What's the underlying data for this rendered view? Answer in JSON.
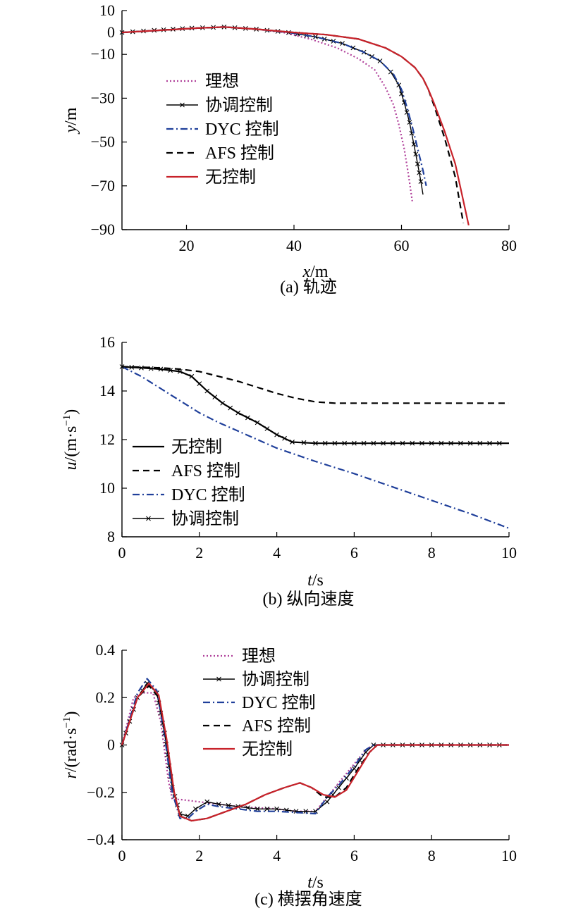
{
  "chart_data": [
    {
      "type": "line",
      "caption": "(a) 轨迹",
      "xlabel_var": "x",
      "xlabel_unit": "/m",
      "ylabel_var": "y",
      "ylabel_unit": "/m",
      "xlim": [
        8,
        80
      ],
      "ylim": [
        -90,
        10
      ],
      "xticks": [
        20,
        40,
        60,
        80
      ],
      "yticks": [
        10,
        0,
        -10,
        -30,
        -50,
        -70,
        -90
      ],
      "legend": "left",
      "series": [
        {
          "name": "理想",
          "color": "#b0409a",
          "style": "dotted",
          "x": [
            8,
            15,
            22,
            27,
            33,
            38,
            43,
            48,
            52,
            55,
            57,
            58.5,
            59.5,
            60.5,
            61.3,
            62
          ],
          "y": [
            0,
            1,
            2,
            2.5,
            1.5,
            0,
            -3,
            -7,
            -12,
            -17,
            -25,
            -33,
            -42,
            -53,
            -65,
            -77
          ]
        },
        {
          "name": "协调控制",
          "color": "#000000",
          "style": "solid-x",
          "x": [
            8,
            14,
            21,
            27,
            33,
            39,
            44,
            49,
            53,
            56,
            58,
            59.5,
            60.5,
            61.5,
            62.3,
            63,
            63.6,
            64
          ],
          "y": [
            0,
            1,
            2,
            2.5,
            1.5,
            0,
            -2,
            -5,
            -9,
            -13,
            -18,
            -24,
            -32,
            -41,
            -51,
            -60,
            -68,
            -74
          ]
        },
        {
          "name": "DYC 控制",
          "color": "#1f3f9a",
          "style": "dashdot",
          "x": [
            8,
            15,
            22,
            27,
            33,
            39,
            44,
            49,
            53,
            56,
            58.5,
            60,
            61,
            62,
            63,
            64,
            64.6
          ],
          "y": [
            0,
            1,
            2,
            2.5,
            1.5,
            0,
            -2,
            -5,
            -9,
            -13,
            -19,
            -26,
            -34,
            -43,
            -53,
            -63,
            -70
          ]
        },
        {
          "name": "AFS 控制",
          "color": "#000000",
          "style": "dashed",
          "x": [
            8,
            15,
            22,
            27,
            33,
            40,
            46,
            52,
            57,
            60,
            62.5,
            64,
            65,
            66,
            68,
            70,
            71.5
          ],
          "y": [
            0,
            1,
            2,
            2.5,
            1.5,
            0,
            -1,
            -3,
            -7,
            -11,
            -16,
            -21,
            -26,
            -33,
            -48,
            -66,
            -87
          ]
        },
        {
          "name": "无控制",
          "color": "#c8222a",
          "style": "solid",
          "x": [
            8,
            15,
            22,
            27,
            33,
            40,
            46,
            52,
            57,
            60,
            62.5,
            64,
            65,
            66,
            68,
            70,
            72.5
          ],
          "y": [
            0,
            1,
            2,
            2.5,
            1.5,
            0,
            -1,
            -3,
            -7,
            -11,
            -16,
            -21,
            -26,
            -32,
            -45,
            -60,
            -88
          ]
        }
      ]
    },
    {
      "type": "line",
      "caption": "(b) 纵向速度",
      "xlabel_var": "t",
      "xlabel_unit": "/s",
      "ylabel_var": "u",
      "ylabel_unit": "/(m·s",
      "ylabel_exp": "−1",
      "ylabel_close": ")",
      "xlim": [
        0,
        10
      ],
      "ylim": [
        8,
        16
      ],
      "xticks": [
        0,
        2,
        4,
        6,
        8,
        10
      ],
      "yticks": [
        8,
        10,
        12,
        14,
        16
      ],
      "legend": "bottom-left",
      "series": [
        {
          "name": "无控制",
          "color": "#000000",
          "style": "solid",
          "x": [
            0,
            0.5,
            1,
            1.5,
            1.8,
            2.2,
            2.6,
            3,
            3.5,
            4,
            4.4,
            5,
            6,
            7,
            8,
            9,
            10
          ],
          "y": [
            15,
            14.95,
            14.9,
            14.8,
            14.6,
            14.0,
            13.5,
            13.1,
            12.7,
            12.2,
            11.9,
            11.85,
            11.85,
            11.85,
            11.85,
            11.85,
            11.85
          ]
        },
        {
          "name": "AFS 控制",
          "color": "#000000",
          "style": "dashed",
          "x": [
            0,
            0.5,
            1,
            1.5,
            2,
            2.5,
            3,
            3.5,
            4,
            4.5,
            5,
            5.5,
            6,
            7,
            8,
            9,
            10
          ],
          "y": [
            15,
            14.98,
            14.95,
            14.9,
            14.8,
            14.6,
            14.4,
            14.15,
            13.9,
            13.7,
            13.55,
            13.5,
            13.5,
            13.5,
            13.5,
            13.5,
            13.5
          ]
        },
        {
          "name": "DYC 控制",
          "color": "#1f3f9a",
          "style": "dashdot",
          "x": [
            0,
            0.5,
            1,
            1.5,
            2,
            2.5,
            3,
            3.5,
            4,
            5,
            6,
            7,
            8,
            9,
            10
          ],
          "y": [
            15,
            14.6,
            14.1,
            13.6,
            13.1,
            12.7,
            12.35,
            12.0,
            11.65,
            11.1,
            10.6,
            10.05,
            9.5,
            8.95,
            8.35
          ]
        },
        {
          "name": "协调控制",
          "color": "#000000",
          "style": "solid-x",
          "x": [
            0,
            0.5,
            1,
            1.5,
            1.8,
            2.2,
            2.6,
            3,
            3.5,
            4,
            4.4,
            5,
            6,
            7,
            8,
            9,
            10
          ],
          "y": [
            15,
            14.95,
            14.9,
            14.8,
            14.6,
            14.0,
            13.5,
            13.1,
            12.7,
            12.2,
            11.9,
            11.85,
            11.85,
            11.85,
            11.85,
            11.85,
            11.85
          ]
        }
      ]
    },
    {
      "type": "line",
      "caption": "(c) 横摆角速度",
      "xlabel_var": "t",
      "xlabel_unit": "/s",
      "ylabel_var": "r",
      "ylabel_unit": "/(rad·s",
      "ylabel_exp": "−1",
      "ylabel_close": ")",
      "xlim": [
        0,
        10
      ],
      "ylim": [
        -0.4,
        0.4
      ],
      "xticks": [
        0,
        2,
        4,
        6,
        8,
        10
      ],
      "yticks": [
        0.4,
        0.2,
        0,
        -0.2,
        -0.4
      ],
      "legend": "top-center",
      "series": [
        {
          "name": "理想",
          "color": "#b0409a",
          "style": "dotted",
          "x": [
            0,
            0.15,
            0.3,
            0.5,
            0.8,
            1.0,
            1.2,
            1.3,
            1.5,
            2,
            3,
            4,
            4.5,
            5,
            5.3,
            5.6,
            6,
            6.3,
            6.5,
            7,
            8,
            9,
            10
          ],
          "y": [
            0,
            0.1,
            0.2,
            0.22,
            0.22,
            0.1,
            -0.15,
            -0.23,
            -0.23,
            -0.24,
            -0.26,
            -0.27,
            -0.28,
            -0.28,
            -0.22,
            -0.16,
            -0.08,
            -0.02,
            0,
            0,
            0,
            0,
            0
          ]
        },
        {
          "name": "协调控制",
          "color": "#000000",
          "style": "solid-x",
          "x": [
            0,
            0.2,
            0.4,
            0.65,
            0.9,
            1.1,
            1.3,
            1.5,
            1.7,
            1.9,
            2.2,
            2.5,
            3,
            3.5,
            4,
            4.5,
            5,
            5.3,
            5.6,
            6,
            6.3,
            6.5,
            7,
            8,
            9,
            10
          ],
          "y": [
            0,
            0.1,
            0.2,
            0.26,
            0.22,
            0.05,
            -0.18,
            -0.29,
            -0.3,
            -0.27,
            -0.24,
            -0.25,
            -0.26,
            -0.27,
            -0.27,
            -0.28,
            -0.28,
            -0.24,
            -0.18,
            -0.1,
            -0.03,
            0,
            0,
            0,
            0,
            0
          ]
        },
        {
          "name": "DYC 控制",
          "color": "#1f3f9a",
          "style": "dashdot",
          "x": [
            0,
            0.2,
            0.4,
            0.65,
            0.9,
            1.1,
            1.3,
            1.5,
            1.7,
            1.9,
            2.2,
            2.5,
            3,
            3.5,
            4,
            4.5,
            5,
            5.3,
            5.6,
            6,
            6.3,
            6.5,
            7,
            8,
            9,
            10
          ],
          "y": [
            0,
            0.11,
            0.22,
            0.28,
            0.23,
            0.04,
            -0.2,
            -0.31,
            -0.31,
            -0.28,
            -0.25,
            -0.26,
            -0.27,
            -0.28,
            -0.28,
            -0.285,
            -0.29,
            -0.22,
            -0.17,
            -0.09,
            -0.02,
            0,
            0,
            0,
            0,
            0
          ]
        },
        {
          "name": "AFS 控制",
          "color": "#000000",
          "style": "dashed",
          "x": [
            0,
            0.2,
            0.4,
            0.7,
            0.95,
            1.15,
            1.35,
            1.5,
            1.8,
            2.2,
            2.7,
            3.2,
            3.7,
            4.2,
            4.6,
            4.9,
            5.2,
            5.5,
            5.8,
            6.1,
            6.4,
            6.6,
            7,
            8,
            9,
            10
          ],
          "y": [
            0,
            0.1,
            0.2,
            0.25,
            0.2,
            0.02,
            -0.2,
            -0.3,
            -0.32,
            -0.31,
            -0.28,
            -0.25,
            -0.21,
            -0.18,
            -0.16,
            -0.18,
            -0.22,
            -0.22,
            -0.18,
            -0.1,
            -0.03,
            0,
            0,
            0,
            0,
            0
          ]
        },
        {
          "name": "无控制",
          "color": "#c8222a",
          "style": "solid",
          "x": [
            0,
            0.2,
            0.4,
            0.7,
            0.95,
            1.15,
            1.35,
            1.5,
            1.8,
            2.2,
            2.7,
            3.2,
            3.7,
            4.2,
            4.6,
            4.9,
            5.2,
            5.5,
            5.8,
            6.1,
            6.4,
            6.6,
            7,
            8,
            9,
            10
          ],
          "y": [
            0,
            0.1,
            0.2,
            0.26,
            0.21,
            0.03,
            -0.2,
            -0.3,
            -0.32,
            -0.31,
            -0.28,
            -0.25,
            -0.21,
            -0.18,
            -0.16,
            -0.18,
            -0.21,
            -0.22,
            -0.19,
            -0.11,
            -0.03,
            0,
            0,
            0,
            0,
            0
          ]
        }
      ]
    }
  ]
}
